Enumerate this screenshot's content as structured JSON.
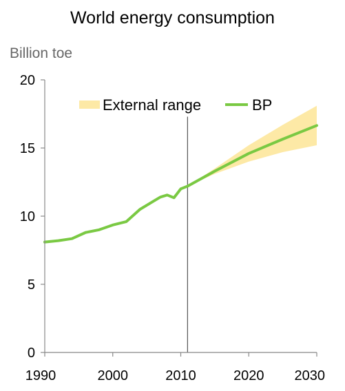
{
  "chart_data": {
    "type": "line",
    "title": "World energy consumption",
    "ylabel": "Billion toe",
    "xlabel": "",
    "xlim": [
      1990,
      2030
    ],
    "ylim": [
      0,
      20
    ],
    "x_ticks": [
      "1990",
      "2000",
      "2010",
      "2020",
      "2030"
    ],
    "y_ticks": [
      "0",
      "5",
      "10",
      "15",
      "20"
    ],
    "grid": false,
    "legend_position": "top",
    "vertical_marker_x": 2011,
    "series": [
      {
        "name": "BP",
        "type": "line",
        "color": "#7ac943",
        "x": [
          1990,
          1992,
          1994,
          1996,
          1998,
          2000,
          2002,
          2004,
          2006,
          2007,
          2008,
          2009,
          2010,
          2011,
          2015,
          2020,
          2025,
          2030
        ],
        "y": [
          8.1,
          8.2,
          8.35,
          8.8,
          9.0,
          9.35,
          9.6,
          10.5,
          11.1,
          11.4,
          11.55,
          11.35,
          12.0,
          12.2,
          13.3,
          14.6,
          15.65,
          16.65
        ]
      },
      {
        "name": "External range",
        "type": "area",
        "color": "#fde9a6",
        "x": [
          2011,
          2015,
          2020,
          2025,
          2030
        ],
        "lower": [
          12.2,
          13.1,
          14.0,
          14.7,
          15.2
        ],
        "upper": [
          12.2,
          13.5,
          15.2,
          16.7,
          18.1
        ]
      }
    ]
  }
}
